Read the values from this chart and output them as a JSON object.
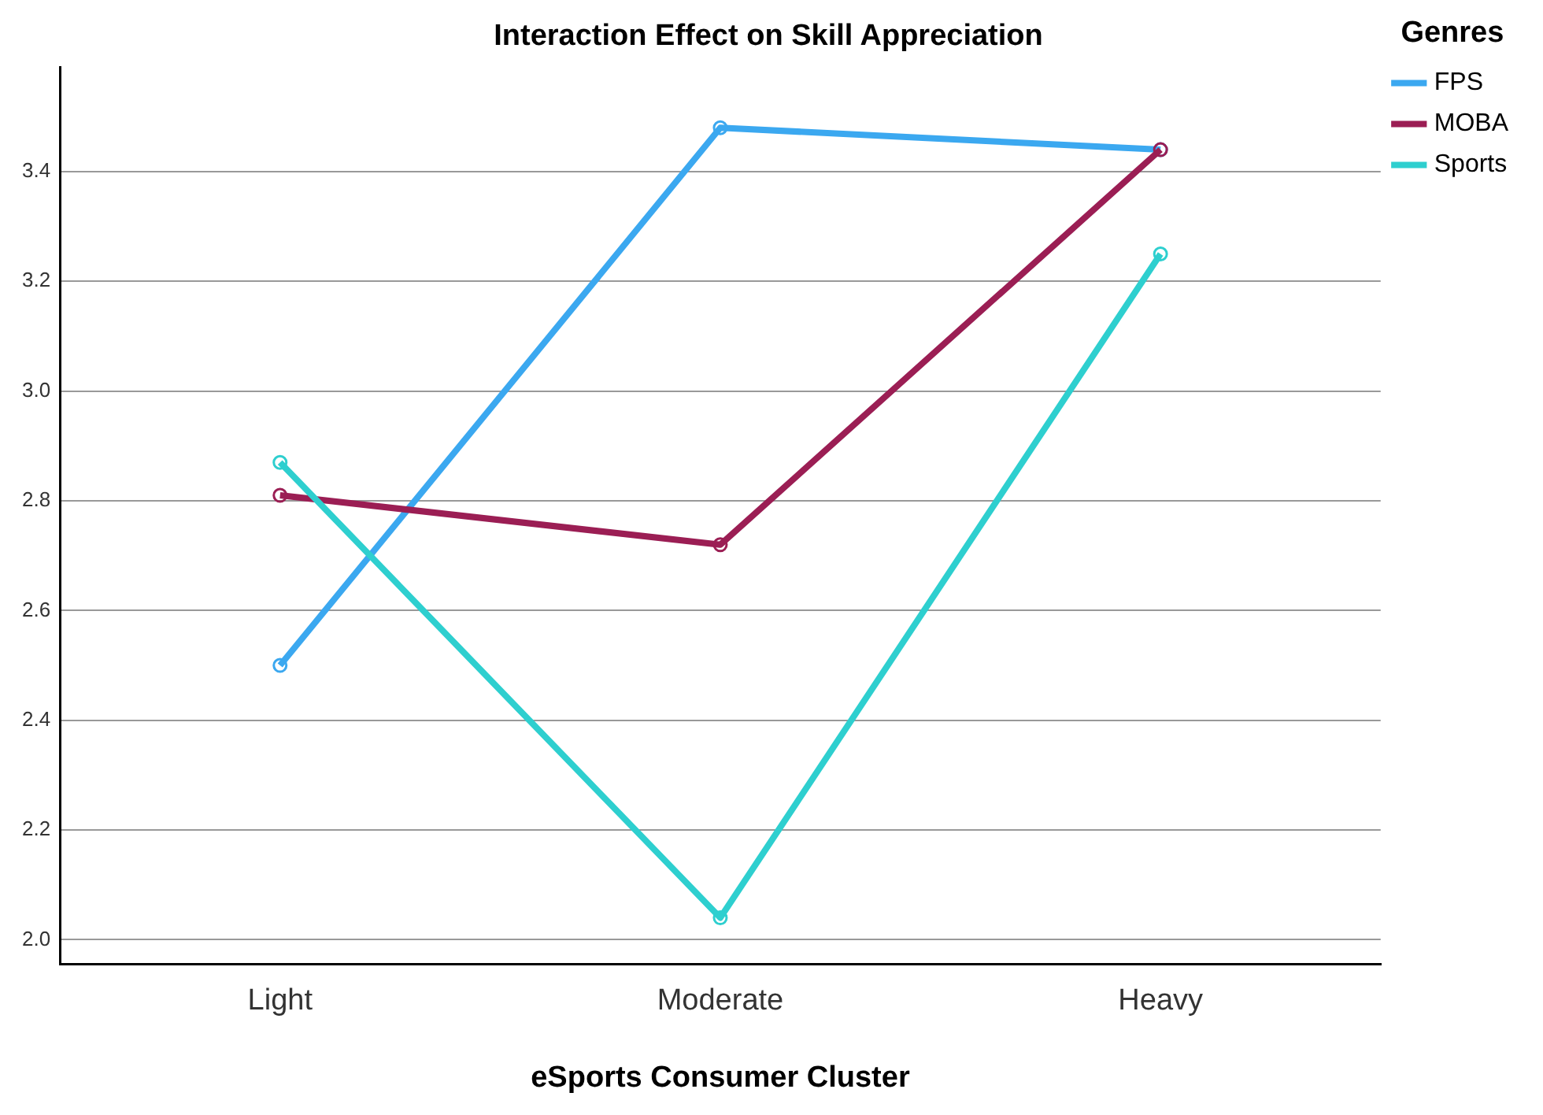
{
  "chart_data": {
    "type": "line",
    "title": "Interaction Effect on Skill Appreciation",
    "xlabel": "eSports Consumer Cluster",
    "legend_title": "Genres",
    "categories": [
      "Light",
      "Moderate",
      "Heavy"
    ],
    "series": [
      {
        "name": "FPS",
        "color": "#3ba8f0",
        "values": [
          2.5,
          3.48,
          3.44
        ]
      },
      {
        "name": "MOBA",
        "color": "#9b1e54",
        "values": [
          2.81,
          2.72,
          3.44
        ]
      },
      {
        "name": "Sports",
        "color": "#2ecfcf",
        "values": [
          2.87,
          2.04,
          3.25
        ]
      }
    ],
    "ylim": [
      1.955,
      3.59
    ],
    "yticks": [
      {
        "value": 2,
        "label": "2.0"
      },
      {
        "value": 2.2,
        "label": "2.2"
      },
      {
        "value": 2.4,
        "label": "2.4"
      },
      {
        "value": 2.6,
        "label": "2.6"
      },
      {
        "value": 2.8,
        "label": "2.8"
      },
      {
        "value": 3,
        "label": "3.0"
      },
      {
        "value": 3.2,
        "label": "3.2"
      },
      {
        "value": 3.4,
        "label": "3.4"
      }
    ],
    "grid": "y",
    "legend": "top right",
    "marker": "circle",
    "line_style": "solid"
  }
}
